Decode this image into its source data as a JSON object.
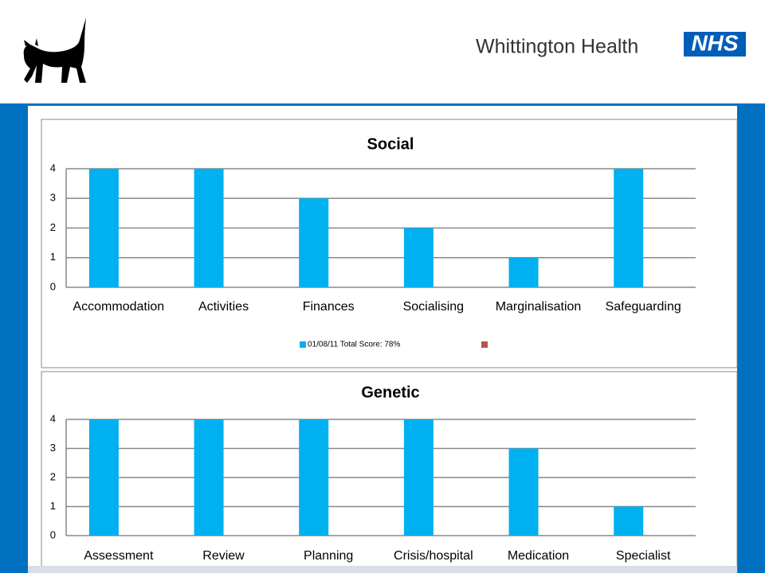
{
  "header": {
    "organisation": "Whittington Health",
    "logo": "NHS"
  },
  "chart_data": [
    {
      "type": "bar",
      "title": "Social",
      "categories": [
        "Accommodation",
        "Activities",
        "Finances",
        "Socialising",
        "Marginalisation",
        "Safeguarding"
      ],
      "series": [
        {
          "name": "01/08/11 Total Score: 78%",
          "color": "#00b0f0",
          "values": [
            4,
            4,
            3,
            2,
            1,
            4
          ]
        }
      ],
      "ylim": [
        0,
        4
      ],
      "yticks": [
        0,
        1,
        2,
        3,
        4
      ],
      "grid": true,
      "legend": "bottom"
    },
    {
      "type": "bar",
      "title": "Genetic",
      "categories": [
        "Assessment",
        "Review",
        "Planning",
        "Crisis/hospital",
        "Medication",
        "Specialist"
      ],
      "series": [
        {
          "color": "#00b0f0",
          "values": [
            4,
            4,
            4,
            4,
            3,
            1
          ]
        }
      ],
      "ylim": [
        0,
        4
      ],
      "yticks": [
        0,
        1,
        2,
        3,
        4
      ],
      "grid": true
    }
  ]
}
